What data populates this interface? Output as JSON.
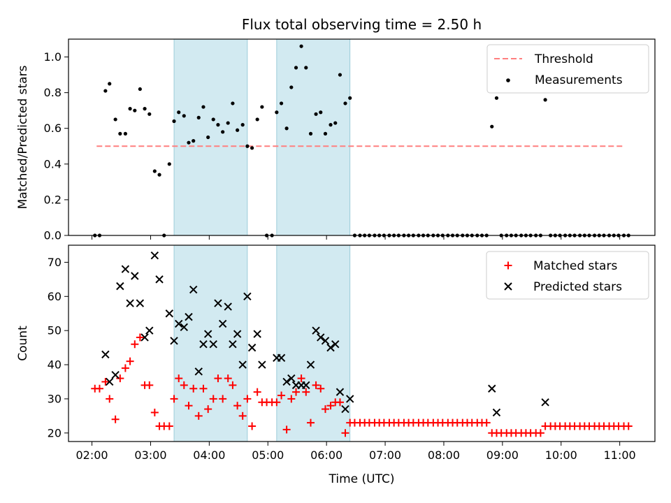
{
  "chart_data": [
    {
      "type": "scatter",
      "title": "Flux total observing time = 2.50 h",
      "xlabel": "",
      "ylabel": "Matched/Predicted stars",
      "x_unit": "hours UTC",
      "xlim": [
        1.6,
        11.6
      ],
      "ylim": [
        0.0,
        1.1
      ],
      "yticks": [
        0.0,
        0.2,
        0.4,
        0.6,
        0.8,
        1.0
      ],
      "xtick_labels_visible": false,
      "shaded_intervals": [
        [
          3.4,
          4.65
        ],
        [
          5.15,
          6.4
        ]
      ],
      "shade_color": "#add8e6",
      "legend": {
        "position": "upper right",
        "entries": [
          "Threshold",
          "Measurements"
        ]
      },
      "threshold": {
        "name": "Threshold",
        "y": 0.5,
        "x_range": [
          2.08,
          11.08
        ],
        "color": "#ff7f7f",
        "style": "dashed"
      },
      "series": [
        {
          "name": "Measurements",
          "color": "#000000",
          "marker": "dot",
          "x": [
            2.05,
            2.13,
            2.23,
            2.3,
            2.4,
            2.48,
            2.57,
            2.65,
            2.73,
            2.82,
            2.9,
            2.98,
            3.07,
            3.15,
            3.23,
            3.32,
            3.4,
            3.48,
            3.57,
            3.65,
            3.73,
            3.82,
            3.9,
            3.98,
            4.07,
            4.15,
            4.23,
            4.32,
            4.4,
            4.48,
            4.57,
            4.65,
            4.73,
            4.82,
            4.9,
            4.98,
            5.07,
            5.15,
            5.23,
            5.32,
            5.4,
            5.48,
            5.57,
            5.65,
            5.73,
            5.82,
            5.9,
            5.98,
            6.07,
            6.15,
            6.23,
            6.32,
            6.4,
            6.48,
            6.57,
            6.65,
            6.73,
            6.82,
            6.9,
            6.98,
            7.07,
            7.15,
            7.23,
            7.32,
            7.4,
            7.48,
            7.57,
            7.65,
            7.73,
            7.82,
            7.9,
            7.98,
            8.07,
            8.15,
            8.23,
            8.32,
            8.4,
            8.48,
            8.57,
            8.65,
            8.73,
            8.82,
            8.9,
            8.98,
            9.07,
            9.15,
            9.23,
            9.32,
            9.4,
            9.48,
            9.57,
            9.65,
            9.73,
            9.82,
            9.9,
            9.98,
            10.07,
            10.15,
            10.23,
            10.32,
            10.4,
            10.48,
            10.57,
            10.65,
            10.73,
            10.82,
            10.9,
            10.98,
            11.07,
            11.15
          ],
          "y": [
            0.0,
            0.0,
            0.81,
            0.85,
            0.65,
            0.57,
            0.57,
            0.71,
            0.7,
            0.82,
            0.71,
            0.68,
            0.36,
            0.34,
            0.0,
            0.4,
            0.64,
            0.69,
            0.67,
            0.52,
            0.53,
            0.66,
            0.72,
            0.55,
            0.65,
            0.62,
            0.58,
            0.63,
            0.74,
            0.59,
            0.62,
            0.5,
            0.49,
            0.65,
            0.72,
            0.0,
            0.0,
            0.69,
            0.74,
            0.6,
            0.83,
            0.94,
            1.06,
            0.94,
            0.57,
            0.68,
            0.69,
            0.57,
            0.62,
            0.63,
            0.9,
            0.74,
            0.77,
            0.0,
            0.0,
            0.0,
            0.0,
            0.0,
            0.0,
            0.0,
            0.0,
            0.0,
            0.0,
            0.0,
            0.0,
            0.0,
            0.0,
            0.0,
            0.0,
            0.0,
            0.0,
            0.0,
            0.0,
            0.0,
            0.0,
            0.0,
            0.0,
            0.0,
            0.0,
            0.0,
            0.0,
            0.61,
            0.77,
            0.0,
            0.0,
            0.0,
            0.0,
            0.0,
            0.0,
            0.0,
            0.0,
            0.0,
            0.76,
            0.0,
            0.0,
            0.0,
            0.0,
            0.0,
            0.0,
            0.0,
            0.0,
            0.0,
            0.0,
            0.0,
            0.0,
            0.0,
            0.0,
            0.0,
            0.0,
            0.0
          ]
        }
      ]
    },
    {
      "type": "scatter",
      "title": "",
      "xlabel": "Time (UTC)",
      "ylabel": "Count",
      "x_unit": "hours UTC",
      "xlim": [
        1.6,
        11.6
      ],
      "ylim": [
        17.5,
        75
      ],
      "yticks": [
        20,
        30,
        40,
        50,
        60,
        70
      ],
      "xticks": [
        2,
        3,
        4,
        5,
        6,
        7,
        8,
        9,
        10,
        11
      ],
      "xtick_labels": [
        "02:00",
        "03:00",
        "04:00",
        "05:00",
        "06:00",
        "07:00",
        "08:00",
        "09:00",
        "10:00",
        "11:00"
      ],
      "shaded_intervals": [
        [
          3.4,
          4.65
        ],
        [
          5.15,
          6.4
        ]
      ],
      "shade_color": "#add8e6",
      "legend": {
        "position": "upper right",
        "entries": [
          "Matched stars",
          "Predicted stars"
        ]
      },
      "series": [
        {
          "name": "Matched stars",
          "color": "#ff0000",
          "marker": "plus",
          "x": [
            2.05,
            2.13,
            2.23,
            2.3,
            2.4,
            2.48,
            2.57,
            2.65,
            2.73,
            2.82,
            2.9,
            2.98,
            3.07,
            3.15,
            3.23,
            3.32,
            3.4,
            3.48,
            3.57,
            3.65,
            3.73,
            3.82,
            3.9,
            3.98,
            4.07,
            4.15,
            4.23,
            4.32,
            4.4,
            4.48,
            4.57,
            4.65,
            4.73,
            4.82,
            4.9,
            4.98,
            5.07,
            5.15,
            5.23,
            5.32,
            5.4,
            5.48,
            5.57,
            5.65,
            5.73,
            5.82,
            5.9,
            5.98,
            6.07,
            6.15,
            6.23,
            6.32,
            6.4,
            6.48,
            6.57,
            6.65,
            6.73,
            6.82,
            6.9,
            6.98,
            7.07,
            7.15,
            7.23,
            7.32,
            7.4,
            7.48,
            7.57,
            7.65,
            7.73,
            7.82,
            7.9,
            7.98,
            8.07,
            8.15,
            8.23,
            8.32,
            8.4,
            8.48,
            8.57,
            8.65,
            8.73,
            8.82,
            8.9,
            8.98,
            9.07,
            9.15,
            9.23,
            9.32,
            9.4,
            9.48,
            9.57,
            9.65,
            9.73,
            9.82,
            9.9,
            9.98,
            10.07,
            10.15,
            10.23,
            10.32,
            10.4,
            10.48,
            10.57,
            10.65,
            10.73,
            10.82,
            10.9,
            10.98,
            11.07,
            11.15
          ],
          "y": [
            33,
            33,
            35,
            30,
            24,
            36,
            39,
            41,
            46,
            48,
            34,
            34,
            26,
            22,
            22,
            22,
            30,
            36,
            34,
            28,
            33,
            25,
            33,
            27,
            30,
            36,
            30,
            36,
            34,
            28,
            25,
            30,
            22,
            32,
            29,
            29,
            29,
            29,
            31,
            21,
            30,
            32,
            36,
            32,
            23,
            34,
            33,
            27,
            28,
            29,
            29,
            20,
            23,
            23,
            23,
            23,
            23,
            23,
            23,
            23,
            23,
            23,
            23,
            23,
            23,
            23,
            23,
            23,
            23,
            23,
            23,
            23,
            23,
            23,
            23,
            23,
            23,
            23,
            23,
            23,
            23,
            20,
            20,
            20,
            20,
            20,
            20,
            20,
            20,
            20,
            20,
            20,
            22,
            22,
            22,
            22,
            22,
            22,
            22,
            22,
            22,
            22,
            22,
            22,
            22,
            22,
            22,
            22,
            22,
            22
          ]
        },
        {
          "name": "Predicted stars",
          "color": "#000000",
          "marker": "x",
          "x": [
            2.23,
            2.3,
            2.4,
            2.48,
            2.57,
            2.65,
            2.73,
            2.82,
            2.9,
            2.98,
            3.07,
            3.15,
            3.32,
            3.4,
            3.48,
            3.57,
            3.65,
            3.73,
            3.82,
            3.9,
            3.98,
            4.07,
            4.15,
            4.23,
            4.32,
            4.4,
            4.48,
            4.57,
            4.65,
            4.73,
            4.82,
            4.9,
            5.15,
            5.23,
            5.32,
            5.4,
            5.48,
            5.57,
            5.65,
            5.73,
            5.82,
            5.9,
            5.98,
            6.07,
            6.15,
            6.23,
            6.32,
            6.4,
            8.82,
            8.9,
            9.73
          ],
          "y": [
            43,
            35,
            37,
            63,
            68,
            58,
            66,
            58,
            48,
            50,
            72,
            65,
            55,
            47,
            52,
            51,
            54,
            62,
            38,
            46,
            49,
            46,
            58,
            52,
            57,
            46,
            49,
            40,
            60,
            45,
            49,
            40,
            42,
            42,
            35,
            36,
            34,
            34,
            34,
            40,
            50,
            48,
            47,
            45,
            46,
            32,
            27,
            30,
            33,
            26,
            29
          ]
        }
      ]
    }
  ]
}
